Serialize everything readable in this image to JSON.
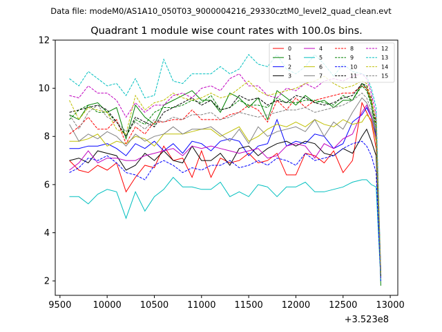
{
  "chart_data": {
    "type": "line",
    "suptitle": "Data file: modeM0/AS1A10_050T03_9000004216_29330cztM0_level2_quad_clean.evt",
    "title": "Quadrant 1 module wise count rates with 100.0s bins.",
    "xlabel": "",
    "ylabel": "",
    "x_offset_label": "+3.523e8",
    "xlim": [
      9450,
      13080
    ],
    "ylim": [
      1.4,
      12
    ],
    "xticks": [
      "9500",
      "10000",
      "10500",
      "11000",
      "11500",
      "12000",
      "12500",
      "13000"
    ],
    "yticks": [
      "2",
      "4",
      "6",
      "8",
      "10",
      "12"
    ],
    "legend_position": "top-right",
    "x": [
      9600,
      9700,
      9800,
      9900,
      10000,
      10100,
      10200,
      10300,
      10400,
      10500,
      10600,
      10700,
      10800,
      10900,
      11000,
      11100,
      11200,
      11300,
      11400,
      11500,
      11600,
      11700,
      11800,
      11900,
      12000,
      12100,
      12200,
      12300,
      12400,
      12500,
      12600,
      12700,
      12750,
      12800,
      12850,
      12900
    ],
    "series": [
      {
        "name": "0",
        "color": "#ff0000",
        "dash": "solid",
        "values": [
          7.0,
          6.6,
          6.5,
          6.8,
          6.6,
          6.9,
          5.7,
          6.3,
          6.8,
          6.7,
          7.6,
          7.0,
          7.1,
          6.3,
          7.4,
          6.3,
          7.1,
          6.9,
          7.0,
          7.3,
          6.9,
          7.0,
          7.3,
          6.4,
          6.4,
          7.3,
          7.2,
          6.9,
          7.4,
          6.5,
          7.0,
          9.4,
          9.0,
          8.6,
          7.5,
          2.2
        ]
      },
      {
        "name": "1",
        "color": "#008000",
        "dash": "solid",
        "values": [
          8.9,
          8.7,
          9.3,
          9.4,
          9.0,
          9.2,
          7.9,
          9.3,
          8.8,
          8.5,
          9.3,
          9.5,
          9.7,
          9.9,
          9.5,
          9.5,
          9.0,
          9.8,
          9.6,
          9.2,
          9.6,
          8.7,
          9.9,
          9.6,
          9.3,
          9.7,
          9.4,
          9.5,
          9.2,
          9.5,
          9.5,
          10.2,
          10.0,
          9.4,
          8.0,
          1.8
        ]
      },
      {
        "name": "2",
        "color": "#0000ff",
        "dash": "solid",
        "values": [
          7.5,
          7.5,
          7.6,
          7.6,
          7.7,
          7.5,
          7.2,
          7.7,
          7.5,
          7.8,
          7.4,
          7.7,
          7.3,
          7.8,
          7.7,
          7.4,
          7.8,
          7.9,
          7.8,
          7.2,
          7.6,
          7.7,
          8.7,
          7.6,
          7.8,
          7.7,
          8.1,
          8.0,
          7.5,
          7.7,
          8.6,
          8.9,
          9.2,
          8.8,
          8.0,
          2.4
        ]
      },
      {
        "name": "3",
        "color": "#000000",
        "dash": "solid",
        "values": [
          7.0,
          7.1,
          6.9,
          7.4,
          7.3,
          7.2,
          6.6,
          6.8,
          7.3,
          7.0,
          7.4,
          7.0,
          6.9,
          7.6,
          7.0,
          7.0,
          7.3,
          6.8,
          7.5,
          7.6,
          7.2,
          7.5,
          7.7,
          7.8,
          7.6,
          7.8,
          7.7,
          7.3,
          7.2,
          7.5,
          7.3,
          8.0,
          8.3,
          7.8,
          7.2,
          2.3
        ]
      },
      {
        "name": "4",
        "color": "#bf00bf",
        "dash": "solid",
        "values": [
          6.6,
          6.9,
          7.4,
          6.9,
          7.1,
          7.1,
          7.0,
          7.0,
          7.2,
          7.3,
          7.4,
          7.5,
          7.2,
          7.6,
          7.5,
          7.6,
          7.5,
          7.4,
          7.3,
          7.4,
          7.5,
          7.1,
          7.2,
          7.6,
          7.7,
          7.6,
          7.1,
          7.7,
          7.5,
          7.9,
          8.1,
          9.0,
          9.3,
          8.8,
          7.9,
          2.1
        ]
      },
      {
        "name": "5",
        "color": "#00bfbf",
        "dash": "solid",
        "values": [
          5.5,
          5.5,
          5.2,
          5.6,
          5.8,
          5.7,
          4.6,
          5.7,
          4.9,
          5.5,
          5.8,
          6.3,
          5.9,
          5.9,
          5.8,
          5.8,
          6.1,
          5.5,
          5.7,
          5.5,
          6.0,
          5.9,
          5.5,
          5.9,
          5.9,
          6.1,
          5.7,
          5.7,
          5.8,
          5.9,
          6.1,
          6.2,
          6.2,
          6.0,
          5.9,
          2.0
        ]
      },
      {
        "name": "6",
        "color": "#bfbf00",
        "dash": "solid",
        "values": [
          7.8,
          7.8,
          7.9,
          8.1,
          7.6,
          7.8,
          7.7,
          8.0,
          7.9,
          7.6,
          8.1,
          8.1,
          8.1,
          8.2,
          8.3,
          8.3,
          8.0,
          8.2,
          8.4,
          7.8,
          8.0,
          8.3,
          8.5,
          8.4,
          8.6,
          8.4,
          8.7,
          8.5,
          8.4,
          8.7,
          8.5,
          8.6,
          8.9,
          8.7,
          7.8,
          2.1
        ]
      },
      {
        "name": "7",
        "color": "#808080",
        "dash": "solid",
        "values": [
          8.5,
          7.8,
          8.1,
          7.9,
          8.2,
          8.0,
          7.6,
          8.1,
          7.8,
          8.0,
          8.1,
          8.4,
          8.1,
          8.3,
          8.3,
          8.4,
          8.1,
          7.8,
          8.3,
          7.7,
          8.4,
          8.0,
          8.2,
          8.3,
          8.4,
          8.2,
          8.7,
          8.0,
          8.6,
          8.3,
          9.0,
          9.6,
          9.4,
          8.9,
          8.2,
          2.2
        ]
      },
      {
        "name": "8",
        "color": "#ff0000",
        "dash": "dashed",
        "values": [
          8.1,
          8.4,
          8.8,
          8.3,
          8.3,
          8.7,
          7.7,
          8.4,
          8.1,
          8.6,
          8.6,
          8.7,
          8.7,
          9.1,
          8.7,
          8.7,
          8.7,
          8.9,
          9.0,
          9.3,
          9.1,
          8.6,
          9.5,
          9.1,
          9.6,
          9.2,
          9.5,
          9.6,
          9.7,
          9.8,
          9.8,
          10.1,
          10.0,
          9.5,
          8.6,
          2.3
        ]
      },
      {
        "name": "9",
        "color": "#008000",
        "dash": "dashed",
        "values": [
          8.7,
          9.1,
          9.3,
          9.0,
          9.0,
          8.6,
          8.0,
          8.7,
          8.5,
          9.0,
          9.2,
          9.2,
          9.3,
          9.5,
          9.4,
          9.7,
          9.1,
          9.2,
          9.5,
          9.3,
          9.3,
          9.2,
          9.6,
          9.4,
          9.4,
          9.5,
          9.5,
          9.4,
          9.3,
          9.7,
          9.5,
          10.1,
          9.9,
          9.3,
          8.4,
          2.2
        ]
      },
      {
        "name": "10",
        "color": "#0000ff",
        "dash": "dashed",
        "values": [
          6.5,
          6.7,
          7.1,
          7.0,
          7.2,
          6.9,
          6.5,
          6.4,
          6.2,
          6.8,
          7.0,
          6.8,
          6.5,
          6.7,
          6.6,
          6.8,
          6.8,
          7.0,
          6.7,
          6.8,
          7.0,
          6.8,
          7.1,
          7.0,
          6.8,
          7.3,
          7.0,
          7.1,
          7.2,
          7.5,
          7.7,
          7.8,
          7.6,
          7.2,
          6.5,
          2.0
        ]
      },
      {
        "name": "11",
        "color": "#000000",
        "dash": "dashed",
        "values": [
          9.0,
          9.1,
          9.2,
          9.3,
          9.1,
          8.6,
          8.0,
          8.8,
          8.6,
          8.4,
          9.0,
          9.2,
          9.4,
          9.6,
          9.3,
          9.5,
          9.1,
          9.2,
          9.7,
          9.5,
          9.6,
          9.3,
          9.5,
          9.4,
          9.7,
          9.6,
          9.4,
          9.3,
          9.4,
          9.6,
          9.7,
          10.2,
          10.1,
          9.6,
          8.5,
          2.2
        ]
      },
      {
        "name": "12",
        "color": "#bf00bf",
        "dash": "dashed",
        "values": [
          9.7,
          9.6,
          10.1,
          9.8,
          9.8,
          9.5,
          8.8,
          9.4,
          9.0,
          9.3,
          9.3,
          9.7,
          9.8,
          9.6,
          10.0,
          10.1,
          9.9,
          10.4,
          10.6,
          10.1,
          10.1,
          9.7,
          9.6,
          10.0,
          9.9,
          10.2,
          10.0,
          10.3,
          10.4,
          10.3,
          10.5,
          10.6,
          10.4,
          9.8,
          8.9,
          2.4
        ]
      },
      {
        "name": "13",
        "color": "#00bfbf",
        "dash": "dashed",
        "values": [
          10.4,
          10.1,
          10.7,
          10.4,
          10.1,
          10.2,
          9.7,
          10.4,
          9.6,
          9.7,
          11.2,
          10.3,
          10.2,
          10.6,
          10.6,
          10.6,
          10.9,
          10.6,
          10.8,
          11.4,
          11.0,
          10.9,
          11.4,
          10.8,
          10.6,
          10.9,
          11.4,
          11.0,
          10.5,
          11.0,
          10.7,
          10.6,
          10.5,
          10.0,
          9.2,
          2.4
        ]
      },
      {
        "name": "14",
        "color": "#bfbf00",
        "dash": "dashed",
        "values": [
          9.5,
          8.7,
          9.2,
          9.1,
          9.0,
          8.3,
          8.1,
          9.7,
          9.1,
          9.4,
          9.5,
          9.8,
          9.6,
          9.5,
          9.6,
          9.8,
          9.6,
          9.7,
          10.0,
          10.3,
          9.9,
          9.7,
          9.8,
          9.9,
          10.0,
          10.2,
          10.3,
          10.5,
          10.2,
          10.0,
          10.1,
          10.3,
          10.2,
          9.5,
          8.7,
          2.3
        ]
      },
      {
        "name": "15",
        "color": "#808080",
        "dash": "dashed",
        "values": [
          8.9,
          8.3,
          9.0,
          9.3,
          8.8,
          8.6,
          8.2,
          8.6,
          8.3,
          8.7,
          8.6,
          8.8,
          8.7,
          8.9,
          8.9,
          9.0,
          8.7,
          8.8,
          9.0,
          8.9,
          8.8,
          8.9,
          9.0,
          9.1,
          9.1,
          9.2,
          9.0,
          9.1,
          9.2,
          9.3,
          9.5,
          9.8,
          9.6,
          9.1,
          8.3,
          2.2
        ]
      }
    ]
  }
}
